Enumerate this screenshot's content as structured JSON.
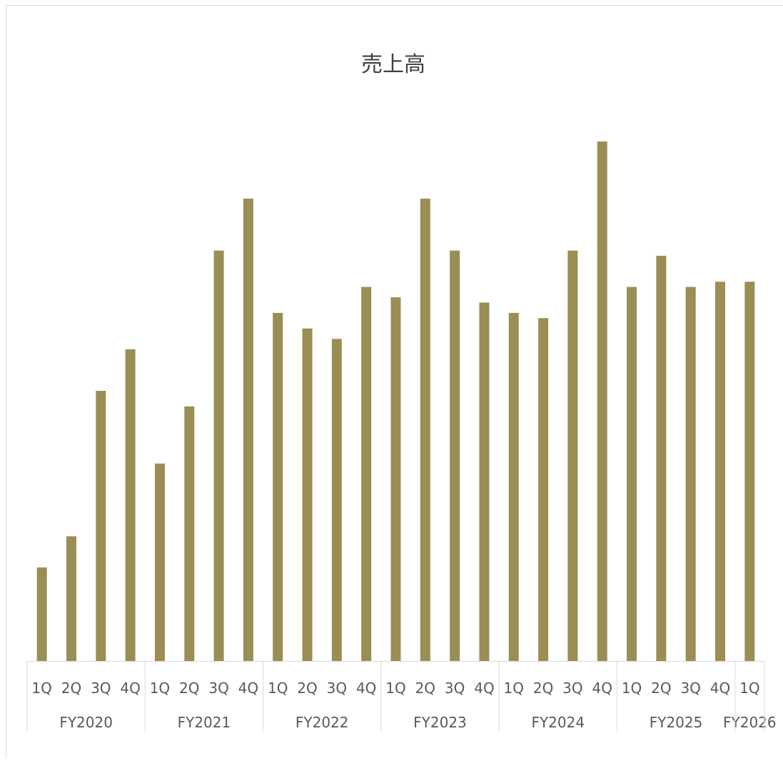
{
  "chart_data": {
    "type": "bar",
    "title": "売上高",
    "xlabel": "",
    "ylabel": "",
    "grid": false,
    "legend": "none",
    "bar_color": "#9A8E55",
    "axis_color": "#D9D9D9",
    "text_color": "#595959",
    "categories": [
      "1Q",
      "2Q",
      "3Q",
      "4Q",
      "1Q",
      "2Q",
      "3Q",
      "4Q",
      "1Q",
      "2Q",
      "3Q",
      "4Q",
      "1Q",
      "2Q",
      "3Q",
      "4Q",
      "1Q",
      "2Q",
      "3Q",
      "4Q",
      "1Q",
      "2Q",
      "3Q",
      "4Q",
      "1Q"
    ],
    "groups": [
      {
        "label": "FY2020",
        "count": 4
      },
      {
        "label": "FY2021",
        "count": 4
      },
      {
        "label": "FY2022",
        "count": 4
      },
      {
        "label": "FY2023",
        "count": 4
      },
      {
        "label": "FY2024",
        "count": 4
      },
      {
        "label": "FY2025",
        "count": 4
      },
      {
        "label": "FY2026",
        "count": 1
      }
    ],
    "values": [
      18,
      24,
      52,
      60,
      38,
      49,
      79,
      89,
      67,
      64,
      62,
      72,
      70,
      89,
      79,
      69,
      67,
      66,
      79,
      100,
      72,
      78,
      72,
      73,
      73
    ],
    "ylim": [
      0,
      100
    ]
  }
}
